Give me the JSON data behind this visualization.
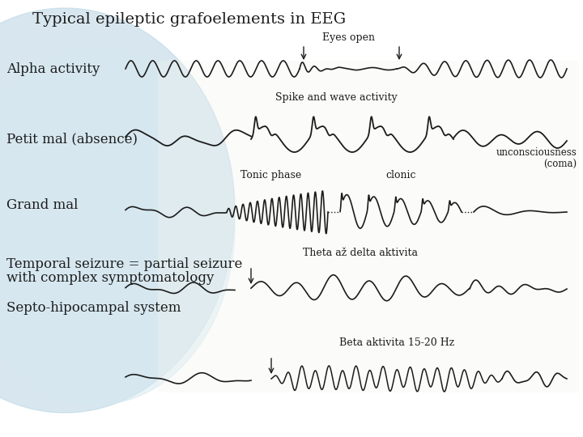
{
  "title": "Typical epileptic grafoelements in EEG",
  "bg_color": "#f0f4f8",
  "arc_color": "#c8dce8",
  "white_area": "#f8f8f8",
  "labels": {
    "alpha": "Alpha activity",
    "petit_mal": "Petit mal (absence)",
    "grand_mal": "Grand mal",
    "temporal_line1": "Temporal seizure = partial seizure",
    "temporal_line2": "with complex symptomatology",
    "septo": "Septo-hipocampal system"
  },
  "annotations": {
    "eyes_open": "Eyes open",
    "spike_wave": "Spike and wave activity",
    "tonic": "Tonic phase",
    "clonic": "clonic",
    "unconscious": "unconsciousness\n(coma)",
    "theta": "Theta až delta aktivita",
    "beta": "Beta aktivita 15-20 Hz"
  },
  "wc": "#1c1c1c",
  "tc": "#1c1c1c",
  "title_fs": 14,
  "label_fs": 12,
  "annot_fs": 9
}
